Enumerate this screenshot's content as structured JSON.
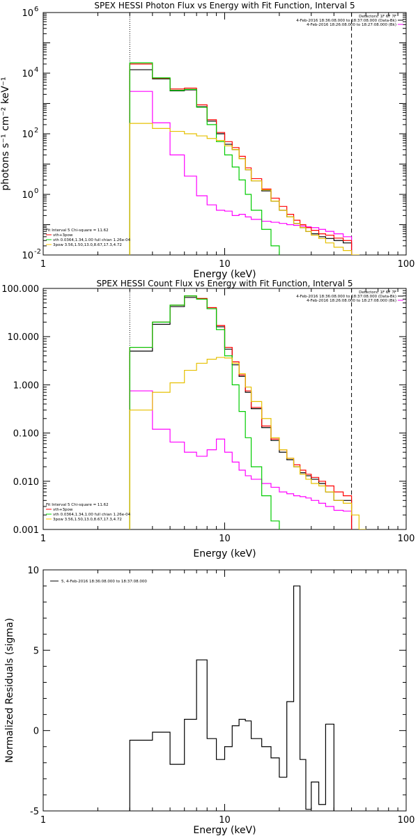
{
  "chart_data": [
    {
      "type": "line",
      "title": "SPEX HESSI Photon Flux vs Energy with Fit Function, Interval 5",
      "xlabel": "Energy (keV)",
      "ylabel": "photons s⁻¹ cm⁻² keV⁻¹",
      "xscale": "log",
      "yscale": "log",
      "xlim": [
        1,
        100
      ],
      "ylim": [
        0.01,
        1000000
      ],
      "x_ticks": [
        {
          "v": 1,
          "label": "1"
        },
        {
          "v": 10,
          "label": "10"
        },
        {
          "v": 100,
          "label": "100"
        }
      ],
      "y_ticks": [
        {
          "v": 0.01,
          "label": "10",
          "exp": "-2"
        },
        {
          "v": 1,
          "label": "10",
          "exp": "0"
        },
        {
          "v": 100,
          "label": "10",
          "exp": "2"
        },
        {
          "v": 10000,
          "label": "10",
          "exp": "4"
        },
        {
          "v": 1000000,
          "label": "10",
          "exp": "6"
        }
      ],
      "vlines": [
        {
          "x": 3,
          "style": "dotted"
        },
        {
          "x": 50,
          "style": "dashed"
        }
      ],
      "header_lines": [
        "Detectors: 1F 6F 7F",
        "4-Feb-2016 18:36:08.000 to 18:37:08.000 (Data-Bk)",
        "4-Feb-2016 18:26:08.000 to 18:27:08.000 (Bk)"
      ],
      "annotation_lines": [
        {
          "text": "Fit Interval  5    Chi-square = 11.62",
          "color": "#000000"
        },
        {
          "text": "vth+3pow",
          "color": "#ff0000"
        },
        {
          "text": "vth 0.0364,1.34,1.00  full chian 1.26e-04",
          "color": "#00dd00"
        },
        {
          "text": "3pow  3.56,1.50,13.0,8.67,17.3,4.72",
          "color": "#ffc800"
        }
      ],
      "edges": [
        3,
        4,
        5,
        6,
        7,
        8,
        9,
        10,
        11,
        12,
        13,
        14,
        16,
        18,
        20,
        22,
        24,
        26,
        28,
        30,
        33,
        36,
        40,
        45,
        50,
        55,
        60
      ],
      "series": [
        {
          "name": "Data-Bk",
          "color": "#000000",
          "values": [
            13000,
            6500,
            2600,
            2800,
            780,
            260,
            100,
            45,
            30,
            15,
            6.5,
            2.8,
            1.3,
            0.6,
            0.3,
            0.18,
            0.11,
            0.08,
            0.06,
            0.05,
            0.04,
            0.035,
            0.03,
            0.025,
            null,
            null
          ]
        },
        {
          "name": "Bk",
          "color": "#ff00ff",
          "values": [
            2500,
            230,
            20,
            4,
            0.9,
            0.45,
            0.3,
            0.28,
            0.2,
            0.22,
            0.18,
            0.15,
            0.13,
            0.12,
            0.11,
            0.1,
            0.095,
            0.09,
            0.085,
            0.08,
            0.07,
            0.06,
            0.05,
            0.04,
            null,
            null
          ]
        },
        {
          "name": "vth+3pow",
          "color": "#ff0000",
          "values": [
            20000,
            6800,
            3000,
            3200,
            900,
            290,
            110,
            55,
            35,
            18,
            7.5,
            3.3,
            1.5,
            0.75,
            0.4,
            0.22,
            0.14,
            0.1,
            0.08,
            0.065,
            0.05,
            0.045,
            0.036,
            0.03,
            null,
            null
          ]
        },
        {
          "name": "vth",
          "color": "#00cc00",
          "values": [
            22000,
            7000,
            2700,
            2900,
            750,
            200,
            55,
            20,
            8,
            3,
            1,
            0.3,
            0.07,
            0.02,
            0.005,
            null,
            null,
            null,
            null,
            null,
            null,
            null,
            null,
            null,
            null,
            null
          ]
        },
        {
          "name": "3pow",
          "color": "#e6c000",
          "values": [
            220,
            150,
            120,
            100,
            85,
            70,
            60,
            40,
            30,
            15,
            6.5,
            2.8,
            1.4,
            0.6,
            0.3,
            0.18,
            0.11,
            0.08,
            0.06,
            0.045,
            0.035,
            0.025,
            0.018,
            0.014,
            0.01,
            0.005
          ]
        }
      ]
    },
    {
      "type": "line",
      "title": "SPEX HESSI Count Flux vs Energy with Fit Function, Interval 5",
      "xlabel": "Energy (keV)",
      "ylabel": "",
      "xscale": "log",
      "yscale": "log",
      "xlim": [
        1,
        100
      ],
      "ylim": [
        0.001,
        100
      ],
      "x_ticks": [
        {
          "v": 1,
          "label": "1"
        },
        {
          "v": 10,
          "label": "10"
        },
        {
          "v": 100,
          "label": "100"
        }
      ],
      "y_ticks": [
        {
          "v": 0.001,
          "label": "0.001"
        },
        {
          "v": 0.01,
          "label": "0.010"
        },
        {
          "v": 0.1,
          "label": "0.100"
        },
        {
          "v": 1,
          "label": "1.000"
        },
        {
          "v": 10,
          "label": "10.000"
        },
        {
          "v": 100,
          "label": "100.000"
        }
      ],
      "vlines": [
        {
          "x": 3,
          "style": "dotted"
        },
        {
          "x": 50,
          "style": "dashed"
        }
      ],
      "header_lines": [
        "Detectors: 1F 6F 7F",
        "4-Feb-2016 18:36:08.000 to 18:37:08.000 (Data-Bk)",
        "4-Feb-2016 18:26:08.000 to 18:27:08.000 (Bk)"
      ],
      "annotation_lines": [
        {
          "text": "Fit Interval  5    Chi-square = 11.62",
          "color": "#000000"
        },
        {
          "text": "vth+3pow",
          "color": "#ff0000"
        },
        {
          "text": "vth 0.0364,1.34,1.00  full chian 1.26e-04",
          "color": "#00dd00"
        },
        {
          "text": "3pow  3.56,1.50,13.0,8.67,17.3,4.72",
          "color": "#ffc800"
        }
      ],
      "edges": [
        3,
        4,
        5,
        6,
        7,
        8,
        9,
        10,
        11,
        12,
        13,
        14,
        16,
        18,
        20,
        22,
        24,
        26,
        28,
        30,
        33,
        36,
        40,
        45,
        50,
        55,
        60
      ],
      "series": [
        {
          "name": "Data-Bk",
          "color": "#000000",
          "values": [
            5,
            18,
            42,
            65,
            60,
            38,
            16,
            5.5,
            2.6,
            1.5,
            0.7,
            0.32,
            0.13,
            0.07,
            0.04,
            0.028,
            0.02,
            0.015,
            0.013,
            0.011,
            0.009,
            0.006,
            0.004,
            0.004,
            null,
            null
          ]
        },
        {
          "name": "Bk",
          "color": "#ff00ff",
          "values": [
            0.75,
            0.12,
            0.065,
            0.04,
            0.033,
            0.045,
            0.075,
            0.04,
            0.025,
            0.017,
            0.013,
            0.011,
            0.009,
            0.0075,
            0.006,
            0.0055,
            0.005,
            0.0048,
            0.0045,
            0.004,
            0.0035,
            0.003,
            0.0025,
            0.0024,
            null,
            null
          ]
        },
        {
          "name": "vth+3pow",
          "color": "#ff0000",
          "values": [
            6,
            20,
            45,
            70,
            62,
            40,
            17,
            6,
            3,
            1.6,
            0.75,
            0.34,
            0.14,
            0.075,
            0.045,
            0.03,
            0.022,
            0.017,
            0.014,
            0.012,
            0.01,
            0.008,
            0.006,
            0.005,
            null,
            null
          ]
        },
        {
          "name": "vth",
          "color": "#00cc00",
          "values": [
            6,
            20,
            45,
            70,
            60,
            38,
            14,
            4,
            1,
            0.28,
            0.08,
            0.02,
            0.005,
            0.0015,
            0.0007,
            null,
            null,
            null,
            null,
            null,
            null,
            null,
            null,
            null,
            null,
            null
          ]
        },
        {
          "name": "3pow",
          "color": "#e6c000",
          "values": [
            0.3,
            0.7,
            1.1,
            2.0,
            2.8,
            3.4,
            3.7,
            3.6,
            2.8,
            1.7,
            0.9,
            0.45,
            0.2,
            0.08,
            0.045,
            0.03,
            0.02,
            0.014,
            0.011,
            0.009,
            0.008,
            0.006,
            0.004,
            0.0035,
            0.002,
            0.001
          ]
        }
      ]
    },
    {
      "type": "line",
      "title": "",
      "xlabel": "Energy (keV)",
      "ylabel": "Normalized Residuals (sigma)",
      "xscale": "log",
      "yscale": "linear",
      "xlim": [
        1,
        100
      ],
      "ylim": [
        -5,
        10
      ],
      "x_ticks": [
        {
          "v": 1,
          "label": "1"
        },
        {
          "v": 10,
          "label": "10"
        },
        {
          "v": 100,
          "label": "100"
        }
      ],
      "y_ticks": [
        {
          "v": -5,
          "label": "-5"
        },
        {
          "v": 0,
          "label": "0"
        },
        {
          "v": 5,
          "label": "5"
        },
        {
          "v": 10,
          "label": "10"
        }
      ],
      "legend": "5,  4-Feb-2016 18:36:08.000 to 18:37:08.000",
      "edges": [
        3,
        4,
        5,
        6,
        7,
        8,
        9,
        10,
        11,
        12,
        13,
        14,
        16,
        18,
        20,
        22,
        24,
        26,
        28,
        30,
        33,
        36,
        40,
        45,
        50
      ],
      "series": [
        {
          "name": "5",
          "color": "#000000",
          "values": [
            -0.6,
            -0.1,
            -2.1,
            0.7,
            4.4,
            -0.5,
            -1.8,
            -1.0,
            0.3,
            0.7,
            0.6,
            -0.5,
            -1.0,
            -1.7,
            -2.9,
            1.8,
            9.0,
            -1.8,
            -4.9,
            -3.2,
            -4.6,
            0.4,
            null,
            null
          ]
        }
      ]
    }
  ]
}
